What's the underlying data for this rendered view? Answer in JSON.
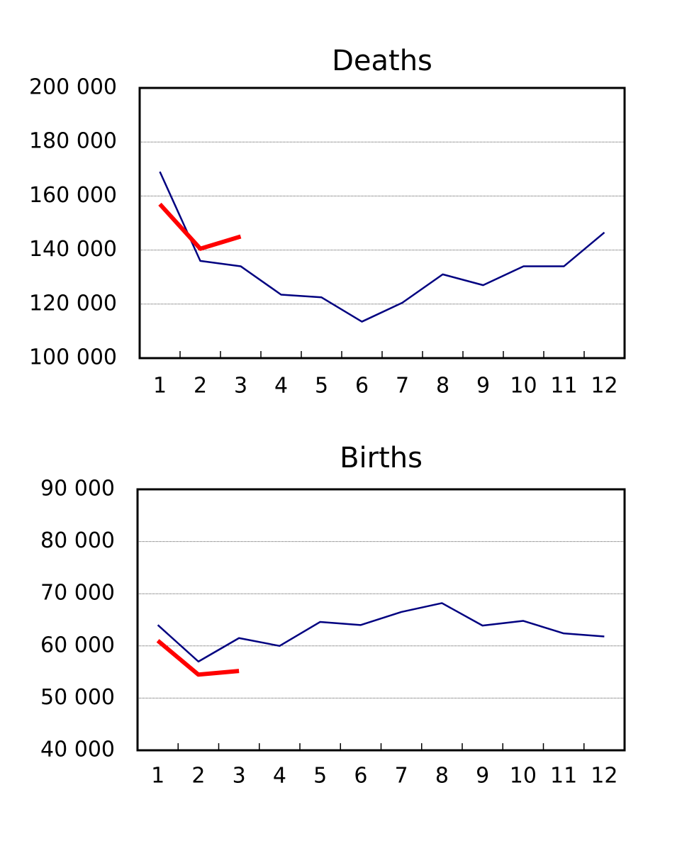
{
  "chart_data": [
    {
      "type": "line",
      "title": "Deaths",
      "categories": [
        "1",
        "2",
        "3",
        "4",
        "5",
        "6",
        "7",
        "8",
        "9",
        "10",
        "11",
        "12"
      ],
      "series": [
        {
          "color": "#000080",
          "values": [
            169000,
            136000,
            134000,
            123500,
            122500,
            113500,
            120500,
            131000,
            127000,
            134000,
            134000,
            146500
          ]
        },
        {
          "color": "#ff0000",
          "values": [
            157000,
            140500,
            145000,
            null,
            null,
            null,
            null,
            null,
            null,
            null,
            null,
            null
          ]
        }
      ],
      "ylim": [
        100000,
        200000
      ],
      "yticks": [
        {
          "value": 100000,
          "label": "100 000"
        },
        {
          "value": 120000,
          "label": "120 000"
        },
        {
          "value": 140000,
          "label": "140 000"
        },
        {
          "value": 160000,
          "label": "160 000"
        },
        {
          "value": 180000,
          "label": "180 000"
        },
        {
          "value": 200000,
          "label": "200 000"
        }
      ],
      "grid": true
    },
    {
      "type": "line",
      "title": "Births",
      "categories": [
        "1",
        "2",
        "3",
        "4",
        "5",
        "6",
        "7",
        "8",
        "9",
        "10",
        "11",
        "12"
      ],
      "series": [
        {
          "color": "#000080",
          "values": [
            64000,
            57000,
            61500,
            60000,
            64600,
            64000,
            66500,
            68200,
            63900,
            64800,
            62400,
            61800
          ]
        },
        {
          "color": "#ff0000",
          "values": [
            61000,
            54500,
            55200,
            null,
            null,
            null,
            null,
            null,
            null,
            null,
            null,
            null
          ]
        }
      ],
      "ylim": [
        40000,
        90000
      ],
      "yticks": [
        {
          "value": 40000,
          "label": "40 000"
        },
        {
          "value": 50000,
          "label": "50 000"
        },
        {
          "value": 60000,
          "label": "60 000"
        },
        {
          "value": 70000,
          "label": "70 000"
        },
        {
          "value": 80000,
          "label": "80 000"
        },
        {
          "value": 90000,
          "label": "90 000"
        }
      ],
      "grid": true
    }
  ]
}
